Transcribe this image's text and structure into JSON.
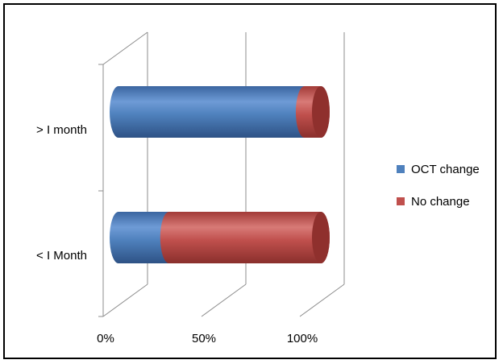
{
  "chart_data": {
    "type": "bar",
    "orientation": "horizontal",
    "stacking": "percent",
    "style": "3d-cylinder",
    "categories": [
      "> I month",
      "< I Month"
    ],
    "series": [
      {
        "name": "OCT change",
        "values": [
          92,
          25
        ],
        "color": "#4F81BD"
      },
      {
        "name": "No change",
        "values": [
          8,
          75
        ],
        "color": "#C0504D"
      }
    ],
    "x_ticks": [
      "0%",
      "50%",
      "100%"
    ],
    "xlim": [
      0,
      100
    ],
    "grid": true,
    "legend_position": "right"
  }
}
